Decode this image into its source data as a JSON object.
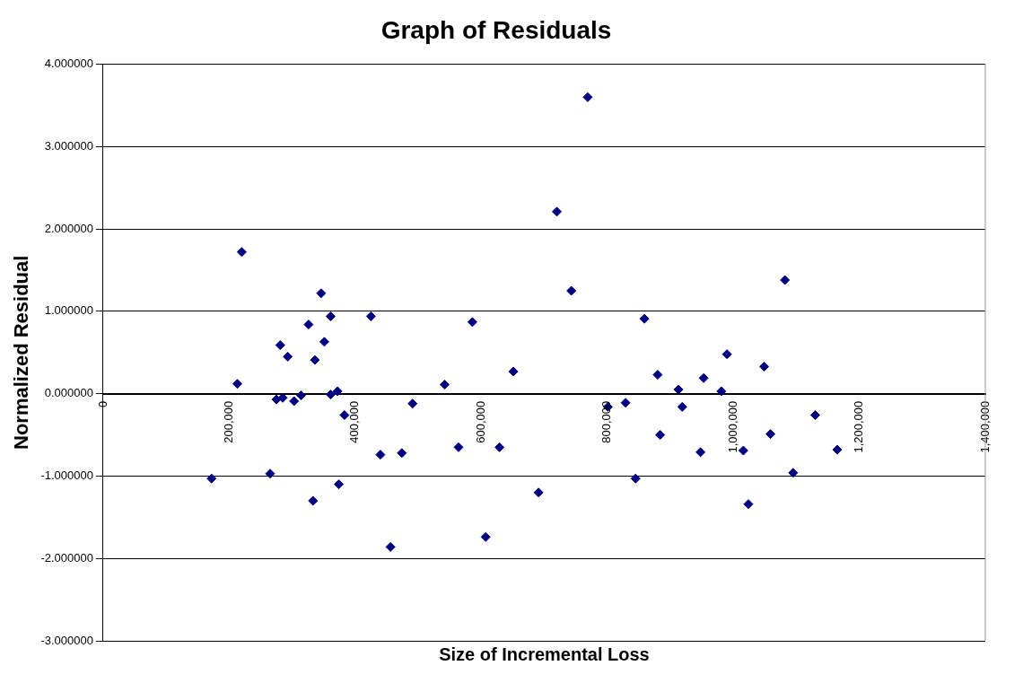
{
  "chart_data": {
    "type": "scatter",
    "title": "Graph of Residuals",
    "xlabel": "Size of Incremental Loss",
    "ylabel": "Normalized Residual",
    "marker": "diamond",
    "grid": "y",
    "legend": false,
    "xlim": [
      0,
      1400000
    ],
    "xticks": [
      0,
      {
        "value": 200000,
        "label": "200,000"
      },
      {
        "value": 400000,
        "label": "400,000"
      },
      {
        "value": 600000,
        "label": "600,000"
      },
      {
        "value": 800000,
        "label": "800,000"
      },
      {
        "value": 1000000,
        "label": "1,000,000"
      },
      {
        "value": 1200000,
        "label": "1,200,000"
      },
      {
        "value": 1400000,
        "label": "1,400,000"
      }
    ],
    "ylim": [
      -3,
      4
    ],
    "yticks": [
      {
        "value": -3,
        "label": "-3.000000"
      },
      {
        "value": -2,
        "label": "-2.000000"
      },
      {
        "value": -1,
        "label": "-1.000000"
      },
      {
        "value": 0,
        "label": "0.000000"
      },
      {
        "value": 1,
        "label": "1.000000"
      },
      {
        "value": 2,
        "label": "2.000000"
      },
      {
        "value": 3,
        "label": "3.000000"
      },
      {
        "value": 4,
        "label": "4.000000"
      }
    ],
    "series": [
      {
        "color": "#000080",
        "x": [
          172000,
          213000,
          220000,
          265000,
          275000,
          281000,
          285000,
          293000,
          303000,
          314000,
          326000,
          333000,
          336000,
          346000,
          351000,
          361000,
          361000,
          372000,
          374000,
          383000,
          425000,
          440000,
          456000,
          474000,
          491000,
          542000,
          564000,
          586000,
          607000,
          629000,
          651000,
          691000,
          720000,
          743000,
          769000,
          801000,
          829000,
          845000,
          859000,
          880000,
          884000,
          913000,
          919000,
          948000,
          953000,
          981000,
          990000,
          1016000,
          1024000,
          1049000,
          1059000,
          1082000,
          1095000,
          1130000,
          1165000
        ],
        "values": [
          -1.03,
          0.12,
          1.72,
          -0.97,
          -0.07,
          0.59,
          -0.05,
          0.45,
          -0.09,
          -0.02,
          0.84,
          -1.3,
          0.41,
          1.22,
          0.63,
          0.94,
          -0.01,
          0.03,
          -1.1,
          -0.26,
          0.94,
          -0.74,
          -1.86,
          -0.72,
          -0.12,
          0.11,
          -0.65,
          0.87,
          -1.74,
          -0.65,
          0.27,
          -1.2,
          2.21,
          1.25,
          3.6,
          -0.16,
          -0.11,
          -1.03,
          0.91,
          0.23,
          -0.5,
          0.05,
          -0.16,
          -0.71,
          0.19,
          0.03,
          0.48,
          -0.69,
          -1.34,
          0.33,
          -0.49,
          1.38,
          -0.96,
          -0.26,
          -0.68
        ]
      }
    ]
  }
}
